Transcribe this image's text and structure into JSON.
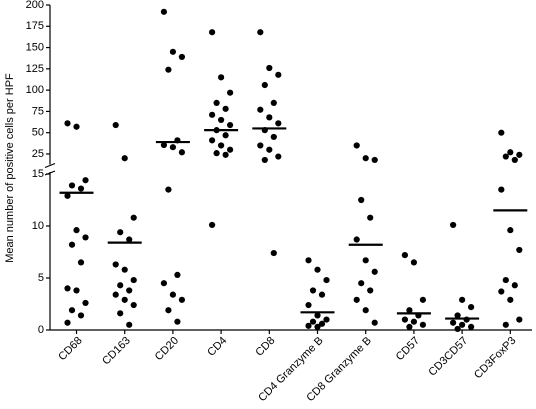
{
  "chart_data": {
    "type": "dot",
    "y_label": "Mean number of positive cells per HPF",
    "categories": [
      "CD68",
      "CD163",
      "CD20",
      "CD4",
      "CD8",
      "CD4 Granzyme B",
      "CD8 Granzyme B",
      "CD57",
      "CD3CD57",
      "CD3FoxP3"
    ],
    "points": [
      [
        61,
        57,
        14.4,
        13.9,
        13.6,
        12.9,
        9.6,
        8.9,
        8.2,
        6.5,
        4,
        3.8,
        2.6,
        1.9,
        1.4,
        0.7
      ],
      [
        59,
        20,
        10.8,
        9.4,
        8.7,
        6.3,
        5.8,
        4.8,
        4.3,
        3.8,
        3.4,
        2.9,
        2.4,
        1.6,
        0.5
      ],
      [
        192,
        145,
        139,
        124,
        41,
        35.5,
        33,
        27,
        13.5,
        5.3,
        4.5,
        3.4,
        2.9,
        1.9,
        0.8
      ],
      [
        168,
        115,
        97,
        85,
        78,
        71,
        65,
        59,
        53,
        47,
        41,
        35,
        30,
        26,
        24,
        10.1
      ],
      [
        168,
        126,
        118,
        106,
        85,
        77,
        68,
        61,
        53,
        45,
        35,
        30,
        22,
        18,
        7.4
      ],
      [
        6.7,
        5.8,
        4.8,
        3.8,
        3.4,
        2.4,
        1.4,
        1,
        0.8,
        0.6,
        0.4,
        0.3
      ],
      [
        35,
        20,
        18,
        12.5,
        10.8,
        8.7,
        6.7,
        5.6,
        4.5,
        3.8,
        2.9,
        1.9,
        0.7
      ],
      [
        7.2,
        6.5,
        2.9,
        1.9,
        1.4,
        1,
        0.8,
        0.5,
        0.3
      ],
      [
        10.1,
        2.9,
        2.2,
        1.4,
        1,
        0.7,
        0.5,
        0.3,
        0.1
      ],
      [
        50,
        27,
        24,
        22,
        18,
        13.5,
        9.6,
        7.7,
        4.8,
        4.3,
        3.7,
        2.9,
        1,
        0.5
      ]
    ],
    "medians": [
      13.2,
      8.4,
      39,
      53,
      55,
      1.7,
      8.2,
      1.6,
      1.1,
      11.5
    ],
    "color": "#000000",
    "ylim": [
      0,
      15
    ],
    "yticks": [
      0,
      5,
      10,
      15
    ],
    "upper_ylim": [
      15,
      200
    ],
    "upper_yticks": [
      25,
      50,
      75,
      100,
      125,
      150,
      175,
      200
    ]
  }
}
